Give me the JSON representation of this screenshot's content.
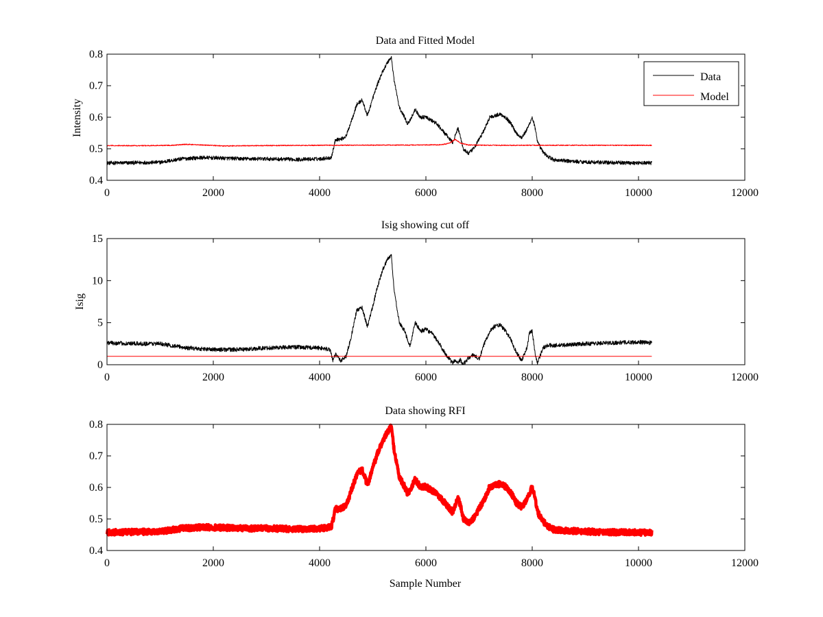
{
  "figure": {
    "background": "#ffffff",
    "common_xlabel": "Sample Number"
  },
  "chart_data": [
    {
      "type": "line",
      "title": "Data and Fitted Model",
      "xlabel": "",
      "ylabel": "Intensity",
      "xlim": [
        0,
        12000
      ],
      "ylim": [
        0.4,
        0.8
      ],
      "xticks": [
        0,
        2000,
        4000,
        6000,
        8000,
        10000,
        12000
      ],
      "yticks": [
        0.4,
        0.5,
        0.6,
        0.7,
        0.8
      ],
      "xtick_labels": [
        "0",
        "2000",
        "4000",
        "6000",
        "8000",
        "10000",
        "12000"
      ],
      "ytick_labels": [
        "0.4",
        "0.5",
        "0.6",
        "0.7",
        "0.8"
      ],
      "grid": false,
      "legend": {
        "position": "top-right",
        "entries": [
          "Data",
          "Model"
        ]
      },
      "series": [
        {
          "name": "Data",
          "color": "#000000",
          "noise": 0.006,
          "x": [
            0,
            200,
            1000,
            1400,
            1800,
            2200,
            2600,
            3000,
            3600,
            4000,
            4220,
            4260,
            4300,
            4400,
            4500,
            4600,
            4700,
            4800,
            4900,
            5000,
            5100,
            5200,
            5300,
            5350,
            5400,
            5500,
            5600,
            5650,
            5700,
            5800,
            5850,
            5900,
            6000,
            6100,
            6200,
            6300,
            6400,
            6500,
            6550,
            6600,
            6650,
            6700,
            6800,
            6900,
            7000,
            7100,
            7200,
            7300,
            7400,
            7500,
            7600,
            7700,
            7800,
            7900,
            8000,
            8050,
            8100,
            8200,
            8300,
            8400,
            8600,
            9000,
            9500,
            10000,
            10250
          ],
          "y": [
            0.455,
            0.455,
            0.457,
            0.468,
            0.472,
            0.47,
            0.468,
            0.468,
            0.466,
            0.468,
            0.472,
            0.5,
            0.53,
            0.53,
            0.54,
            0.59,
            0.64,
            0.655,
            0.605,
            0.66,
            0.71,
            0.75,
            0.78,
            0.79,
            0.72,
            0.63,
            0.6,
            0.58,
            0.59,
            0.625,
            0.61,
            0.6,
            0.6,
            0.59,
            0.58,
            0.56,
            0.54,
            0.52,
            0.54,
            0.565,
            0.54,
            0.5,
            0.485,
            0.5,
            0.53,
            0.56,
            0.6,
            0.605,
            0.61,
            0.6,
            0.58,
            0.55,
            0.535,
            0.56,
            0.6,
            0.57,
            0.52,
            0.49,
            0.475,
            0.465,
            0.462,
            0.458,
            0.456,
            0.455,
            0.455
          ]
        },
        {
          "name": "Model",
          "color": "#ff0000",
          "noise": 0.0015,
          "x": [
            0,
            800,
            1200,
            1500,
            1800,
            2200,
            2800,
            4000,
            6000,
            6300,
            6450,
            6550,
            6650,
            6800,
            7200,
            8000,
            9000,
            10250
          ],
          "y": [
            0.51,
            0.51,
            0.511,
            0.514,
            0.512,
            0.509,
            0.51,
            0.511,
            0.512,
            0.513,
            0.518,
            0.53,
            0.518,
            0.512,
            0.511,
            0.511,
            0.511,
            0.511
          ]
        }
      ]
    },
    {
      "type": "line",
      "title": "Isig showing cut off",
      "xlabel": "",
      "ylabel": "Isig",
      "xlim": [
        0,
        12000
      ],
      "ylim": [
        0,
        15
      ],
      "xticks": [
        0,
        2000,
        4000,
        6000,
        8000,
        10000,
        12000
      ],
      "yticks": [
        0,
        5,
        10,
        15
      ],
      "xtick_labels": [
        "0",
        "2000",
        "4000",
        "6000",
        "8000",
        "10000",
        "12000"
      ],
      "ytick_labels": [
        "0",
        "5",
        "10",
        "15"
      ],
      "grid": false,
      "series": [
        {
          "name": "Isig",
          "color": "#000000",
          "noise": 0.25,
          "x": [
            0,
            500,
            1000,
            1500,
            2000,
            2500,
            3000,
            3500,
            4000,
            4200,
            4250,
            4300,
            4400,
            4500,
            4600,
            4700,
            4800,
            4900,
            5000,
            5100,
            5200,
            5300,
            5350,
            5400,
            5500,
            5600,
            5700,
            5800,
            5850,
            5900,
            6000,
            6100,
            6200,
            6300,
            6400,
            6500,
            6550,
            6600,
            6650,
            6700,
            6800,
            6900,
            7000,
            7100,
            7200,
            7300,
            7400,
            7500,
            7600,
            7700,
            7800,
            7900,
            7950,
            8000,
            8050,
            8100,
            8200,
            8300,
            8500,
            9000,
            9500,
            10000,
            10250
          ],
          "y": [
            2.6,
            2.5,
            2.5,
            2.0,
            1.8,
            1.8,
            2.0,
            2.1,
            2.0,
            1.8,
            0.5,
            1.2,
            0.5,
            1.0,
            3.5,
            6.5,
            6.8,
            4.5,
            7.0,
            9.5,
            11.5,
            12.8,
            13.0,
            9.0,
            5.0,
            4.0,
            2.2,
            5.0,
            4.5,
            4.0,
            4.2,
            3.8,
            3.0,
            2.0,
            1.0,
            0.2,
            0.5,
            0.3,
            0.6,
            0.0,
            0.8,
            1.2,
            0.6,
            2.5,
            4.0,
            4.6,
            4.7,
            4.0,
            3.0,
            1.5,
            0.5,
            2.0,
            3.8,
            4.0,
            1.5,
            0.2,
            2.0,
            2.3,
            2.3,
            2.5,
            2.6,
            2.7,
            2.6
          ]
        },
        {
          "name": "Cut off",
          "color": "#ff0000",
          "noise": 0,
          "x": [
            0,
            10250
          ],
          "y": [
            1.0,
            1.0
          ]
        }
      ]
    },
    {
      "type": "line",
      "title": "Data showing RFI",
      "xlabel": "Sample Number",
      "ylabel": "",
      "xlim": [
        0,
        12000
      ],
      "ylim": [
        0.4,
        0.8
      ],
      "xticks": [
        0,
        2000,
        4000,
        6000,
        8000,
        10000,
        12000
      ],
      "yticks": [
        0.4,
        0.5,
        0.6,
        0.7,
        0.8
      ],
      "xtick_labels": [
        "0",
        "2000",
        "4000",
        "6000",
        "8000",
        "10000",
        "12000"
      ],
      "ytick_labels": [
        "0.4",
        "0.5",
        "0.6",
        "0.7",
        "0.8"
      ],
      "grid": false,
      "series": [
        {
          "name": "RFI",
          "color": "#ff0000",
          "noise": 0.009,
          "x": [
            0,
            200,
            1000,
            1400,
            1800,
            2200,
            2600,
            3000,
            3600,
            4000,
            4220,
            4260,
            4300,
            4400,
            4500,
            4600,
            4700,
            4800,
            4900,
            5000,
            5100,
            5200,
            5300,
            5350,
            5400,
            5500,
            5600,
            5650,
            5700,
            5800,
            5850,
            5900,
            6000,
            6100,
            6200,
            6300,
            6400,
            6500,
            6550,
            6600,
            6650,
            6700,
            6800,
            6900,
            7000,
            7100,
            7200,
            7300,
            7400,
            7500,
            7600,
            7700,
            7800,
            7900,
            8000,
            8050,
            8100,
            8200,
            8300,
            8400,
            8600,
            9000,
            9500,
            10000,
            10250
          ],
          "y": [
            0.458,
            0.458,
            0.46,
            0.47,
            0.474,
            0.472,
            0.47,
            0.47,
            0.468,
            0.47,
            0.474,
            0.502,
            0.532,
            0.532,
            0.542,
            0.592,
            0.642,
            0.657,
            0.607,
            0.662,
            0.712,
            0.752,
            0.782,
            0.792,
            0.722,
            0.632,
            0.602,
            0.582,
            0.592,
            0.627,
            0.612,
            0.602,
            0.602,
            0.592,
            0.582,
            0.562,
            0.542,
            0.522,
            0.542,
            0.567,
            0.542,
            0.502,
            0.487,
            0.502,
            0.532,
            0.562,
            0.602,
            0.607,
            0.612,
            0.602,
            0.582,
            0.552,
            0.537,
            0.562,
            0.602,
            0.572,
            0.522,
            0.492,
            0.477,
            0.467,
            0.464,
            0.46,
            0.458,
            0.457,
            0.457
          ]
        }
      ]
    }
  ]
}
